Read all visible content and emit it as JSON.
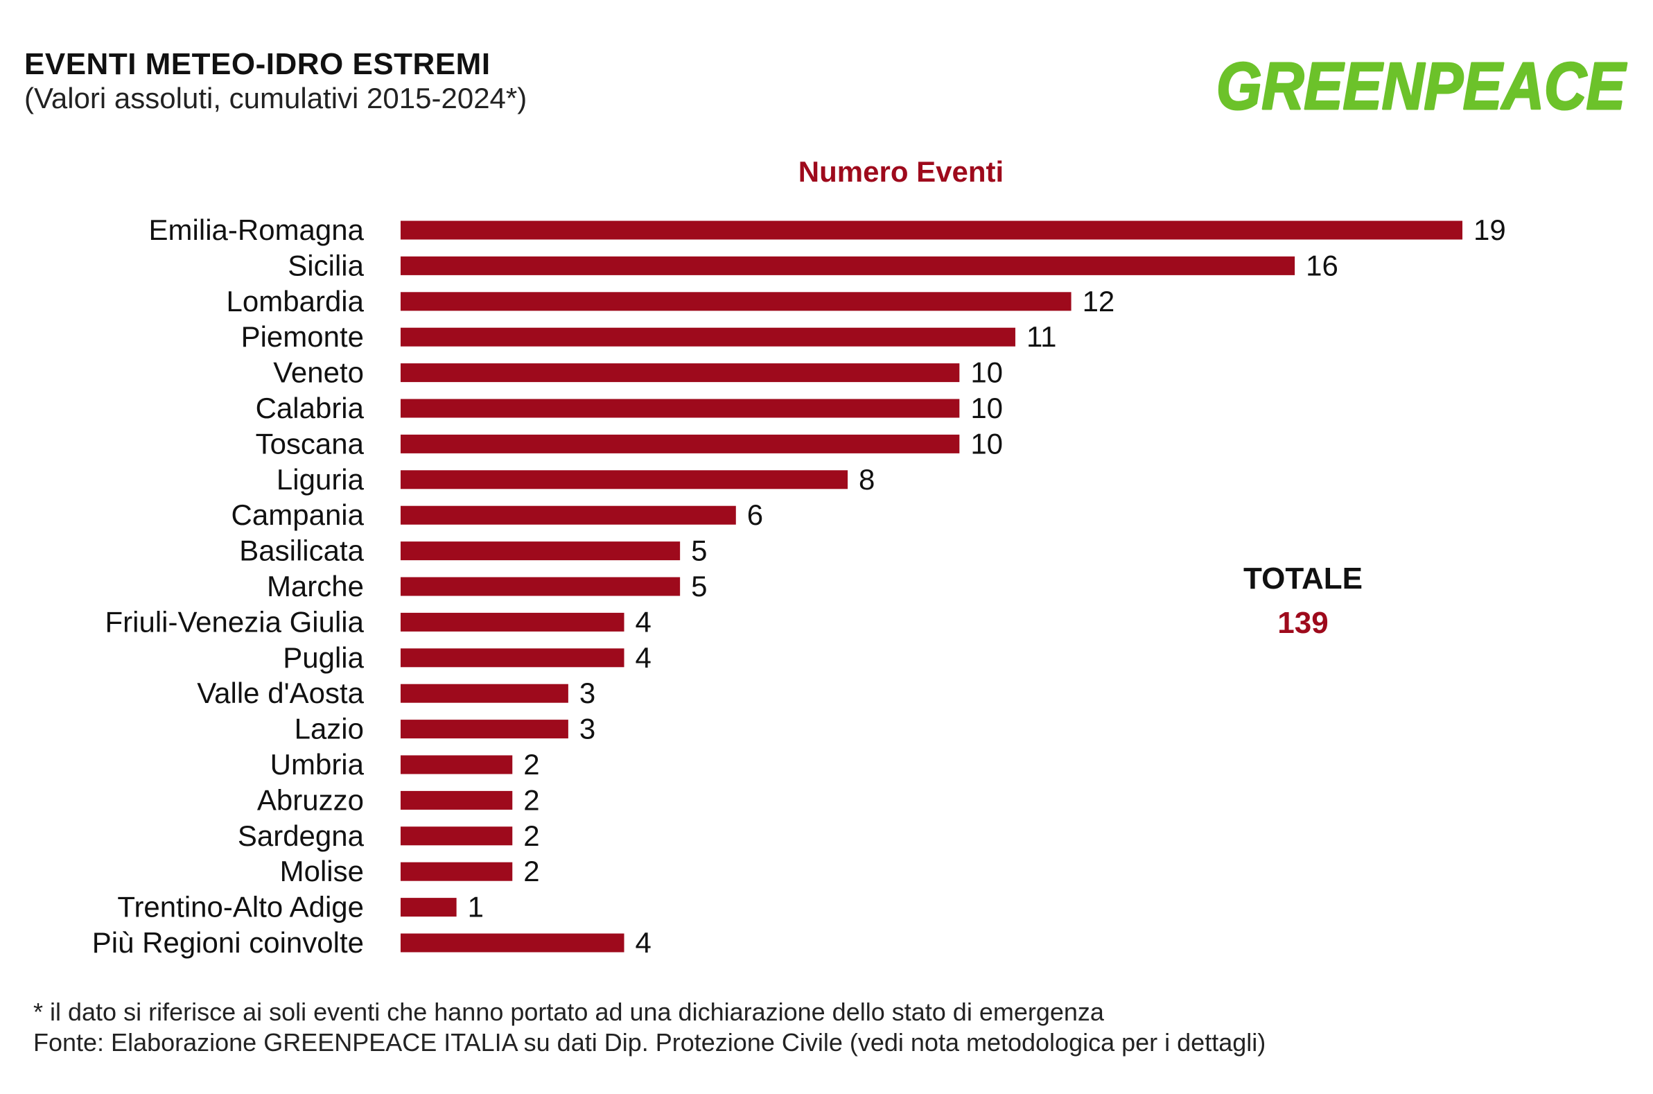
{
  "header": {
    "title": "EVENTI METEO-IDRO ESTREMI",
    "subtitle": "(Valori assoluti, cumulativi 2015-2024*)",
    "logo_text": "GREENPEACE"
  },
  "colors": {
    "bar": "#9e0a1c",
    "logo": "#6cc22a",
    "text": "#111111"
  },
  "total": {
    "label": "TOTALE",
    "value": "139"
  },
  "footnote": {
    "line1": "* il dato si riferisce ai soli eventi che hanno portato ad una dichiarazione dello stato di emergenza",
    "line2": "Fonte: Elaborazione GREENPEACE ITALIA su dati Dip. Protezione Civile (vedi nota metodologica per i dettagli)"
  },
  "chart_data": {
    "type": "bar",
    "orientation": "horizontal",
    "title": "Numero Eventi",
    "xlabel": "",
    "ylabel": "",
    "xlim": [
      0,
      19
    ],
    "grid": false,
    "categories": [
      "Emilia-Romagna",
      "Sicilia",
      "Lombardia",
      "Piemonte",
      "Veneto",
      "Calabria",
      "Toscana",
      "Liguria",
      "Campania",
      "Basilicata",
      "Marche",
      "Friuli-Venezia Giulia",
      "Puglia",
      "Valle d'Aosta",
      "Lazio",
      "Umbria",
      "Abruzzo",
      "Sardegna",
      "Molise",
      "Trentino-Alto Adige",
      "Più Regioni coinvolte"
    ],
    "values": [
      19,
      16,
      12,
      11,
      10,
      10,
      10,
      8,
      6,
      5,
      5,
      4,
      4,
      3,
      3,
      2,
      2,
      2,
      2,
      1,
      4
    ]
  }
}
